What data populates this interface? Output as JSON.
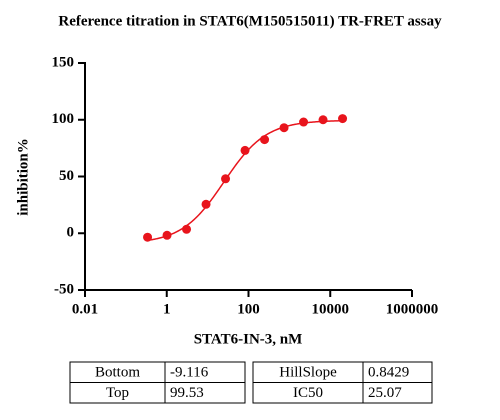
{
  "chart_data": {
    "type": "scatter",
    "title": "Reference titration in STAT6(M150515011) TR-FRET assay",
    "x_label": "STAT6-IN-3, nM",
    "y_label": "inhibition%",
    "x": [
      0.339,
      1.016,
      3.048,
      9.145,
      27.43,
      82.3,
      246.9,
      740.7,
      2222,
      6667,
      20000
    ],
    "values": [
      -3.5,
      -1.8,
      3.5,
      25.5,
      48,
      73,
      82.5,
      93,
      98,
      100,
      101
    ],
    "color": "#e8141c",
    "xscale": "log",
    "xlim": [
      0.01,
      1000000
    ],
    "xticks": [
      0.01,
      1,
      100,
      10000,
      1000000
    ],
    "ylim": [
      -50,
      150
    ],
    "yticks": [
      -50,
      0,
      50,
      100,
      150
    ]
  },
  "tables": [
    {
      "rows": [
        [
          "Bottom",
          -9.116
        ],
        [
          "Top",
          99.53
        ]
      ]
    },
    {
      "rows": [
        [
          "HillSlope",
          0.8429
        ],
        [
          "IC50",
          25.07
        ]
      ]
    }
  ]
}
